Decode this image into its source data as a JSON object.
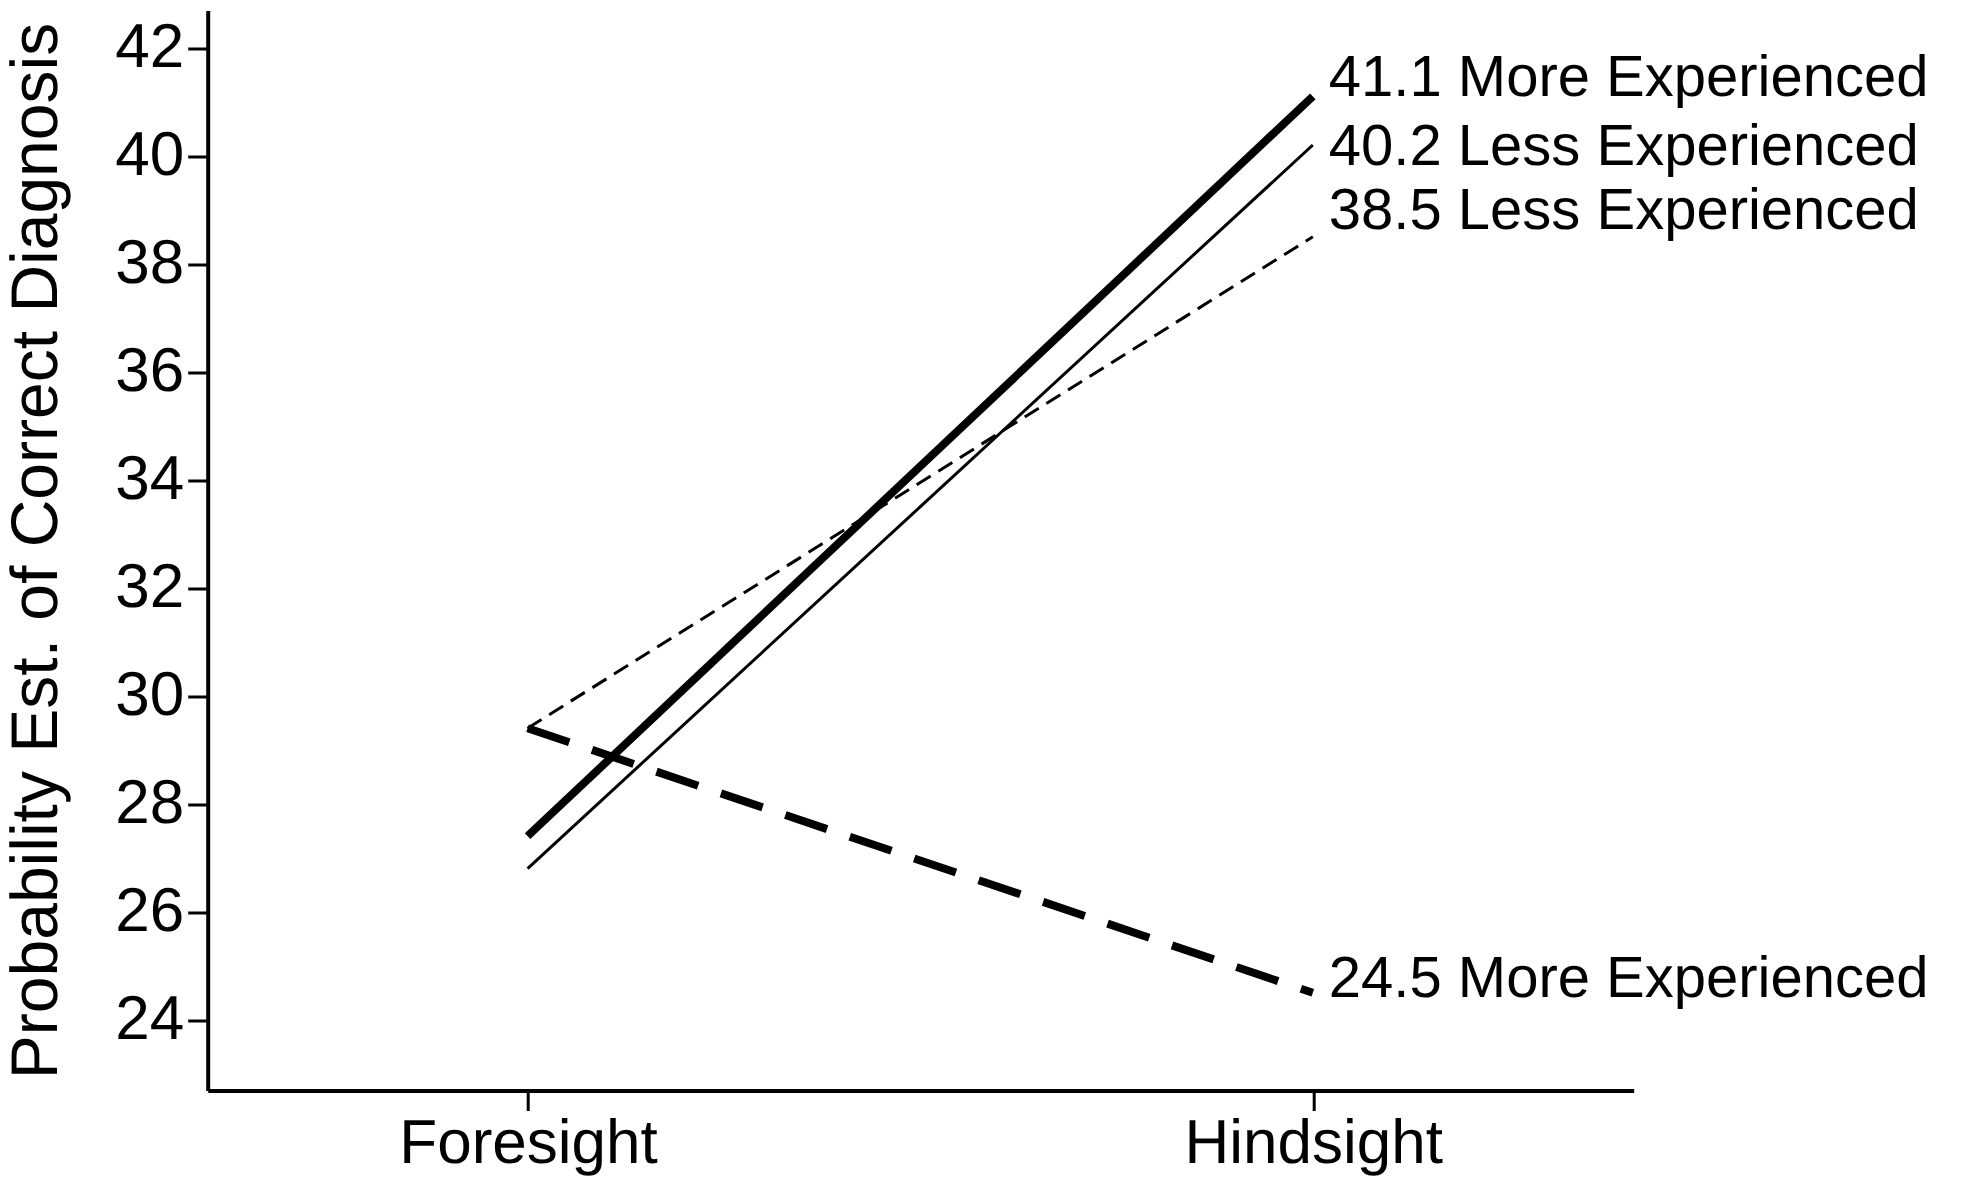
{
  "chart_data": {
    "type": "line",
    "ylabel": "Probability Est. of Correct Diagnosis",
    "categories": [
      "Foresight",
      "Hindsight"
    ],
    "series": [
      {
        "name": "More Experienced",
        "color": "#000000",
        "line_style": "solid",
        "values": [
          27.4,
          41.1
        ],
        "value_labels": [
          null,
          "41.1"
        ]
      },
      {
        "name": "Less Experienced",
        "color": "#000000",
        "line_style": "solid",
        "values": [
          26.8,
          40.2
        ],
        "value_labels": [
          null,
          "40.2"
        ]
      },
      {
        "name": "Less Experienced",
        "color": "#000000",
        "line_style": "dashed",
        "values": [
          29.4,
          38.5
        ],
        "value_labels": [
          null,
          "38.5"
        ]
      },
      {
        "name": "More Experienced",
        "color": "#000000",
        "line_style": "dashed",
        "values": [
          29.4,
          24.5
        ],
        "value_labels": [
          null,
          "24.5"
        ]
      }
    ],
    "ylim": [
      22.7,
      42.7
    ],
    "yticks": [
      24,
      26,
      28,
      30,
      32,
      34,
      36,
      38,
      40,
      42
    ]
  }
}
